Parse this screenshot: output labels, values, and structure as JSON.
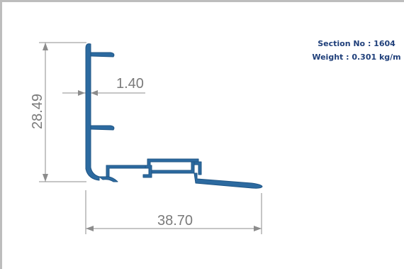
{
  "info": {
    "section": "Section No : 1604",
    "weight": "Weight : 0.301 kg/m"
  },
  "dimensions": {
    "height": "28.49",
    "thickness": "1.40",
    "width": "38.70"
  },
  "colors": {
    "profile": "#2c6aa0",
    "dimension_line": "#8c8c8c",
    "dimension_text": "#7a7a7a",
    "info_text": "#1f3f7a"
  }
}
